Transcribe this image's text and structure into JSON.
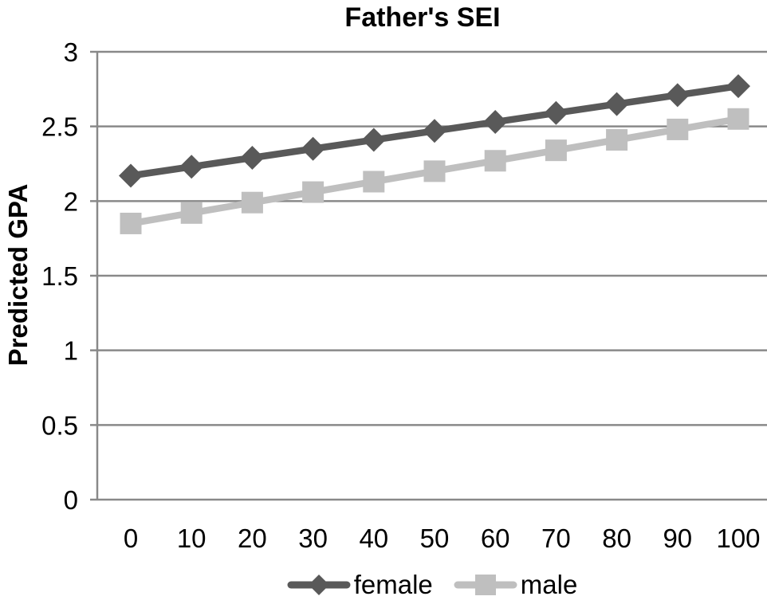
{
  "chart_data": {
    "type": "line",
    "title": "Father's SEI",
    "xlabel": "",
    "ylabel": "Predicted GPA",
    "x": [
      0,
      10,
      20,
      30,
      40,
      50,
      60,
      70,
      80,
      90,
      100
    ],
    "xlim": [
      0,
      100
    ],
    "ylim": [
      0,
      3
    ],
    "yticks": [
      0,
      0.5,
      1,
      1.5,
      2,
      2.5,
      3
    ],
    "grid": true,
    "legend_position": "bottom",
    "series": [
      {
        "name": "female",
        "marker": "diamond",
        "color": "#595959",
        "values": [
          2.17,
          2.23,
          2.29,
          2.35,
          2.41,
          2.47,
          2.53,
          2.59,
          2.65,
          2.71,
          2.77
        ]
      },
      {
        "name": "male",
        "marker": "square",
        "color": "#bfbfbf",
        "values": [
          1.85,
          1.92,
          1.99,
          2.06,
          2.13,
          2.2,
          2.27,
          2.34,
          2.41,
          2.48,
          2.55
        ]
      }
    ]
  },
  "colors": {
    "gridline": "#898989",
    "axis": "#898989",
    "text": "#000000",
    "background": "#ffffff"
  }
}
